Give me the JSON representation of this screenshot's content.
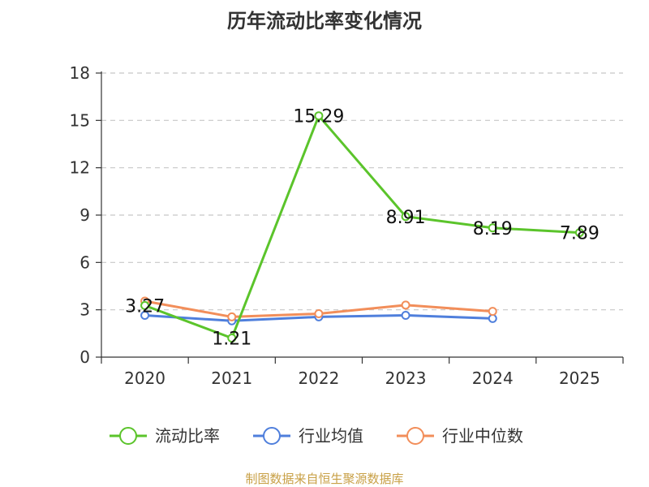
{
  "chart_data": {
    "type": "line",
    "title": "历年流动比率变化情况",
    "categories": [
      "2020",
      "2021",
      "2022",
      "2023",
      "2024",
      "2025"
    ],
    "yticks": [
      "0",
      "3",
      "6",
      "9",
      "12",
      "15",
      "18"
    ],
    "ylim": [
      0,
      18
    ],
    "grid": true,
    "legend_position": "bottom",
    "series": [
      {
        "name": "流动比率",
        "color": "#5bc42b",
        "values": [
          3.27,
          1.21,
          15.29,
          8.91,
          8.19,
          7.89
        ],
        "labels": [
          "3.27",
          "1.21",
          "15.29",
          "8.91",
          "8.19",
          "7.89"
        ]
      },
      {
        "name": "行业均值",
        "color": "#4f7fdc",
        "values": [
          2.65,
          2.3,
          2.55,
          2.65,
          2.45,
          null
        ]
      },
      {
        "name": "行业中位数",
        "color": "#f28e5a",
        "values": [
          3.55,
          2.55,
          2.75,
          3.3,
          2.9,
          null
        ]
      }
    ]
  },
  "source": "制图数据来自恒生聚源数据库"
}
